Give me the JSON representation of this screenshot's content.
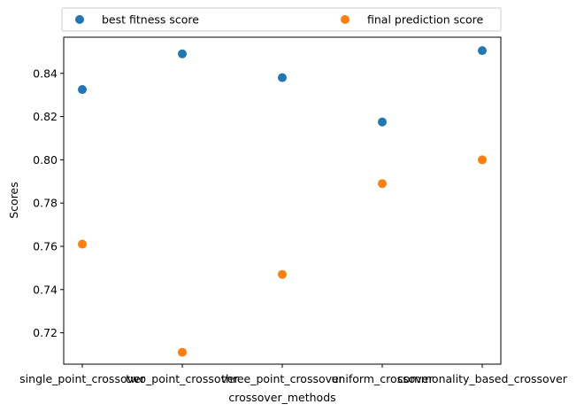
{
  "chart_data": {
    "type": "scatter",
    "title": "",
    "xlabel": "crossover_methods",
    "ylabel": "Scores",
    "categories": [
      "single_point_crossover",
      "two_point_crossover",
      "three_point_crossover",
      "uniform_crossover",
      "commonality_based_crossover"
    ],
    "series": [
      {
        "name": "best fitness score",
        "color": "#1f77b4",
        "values": [
          0.8325,
          0.849,
          0.838,
          0.8175,
          0.8505
        ]
      },
      {
        "name": "final prediction score",
        "color": "#ff7f0e",
        "values": [
          0.761,
          0.711,
          0.747,
          0.789,
          0.8
        ]
      }
    ],
    "yticks": [
      "0.72",
      "0.74",
      "0.76",
      "0.78",
      "0.80",
      "0.82",
      "0.84"
    ],
    "ylim": [
      0.7055,
      0.8567
    ],
    "grid": false,
    "legend_position": "top, above plot"
  }
}
